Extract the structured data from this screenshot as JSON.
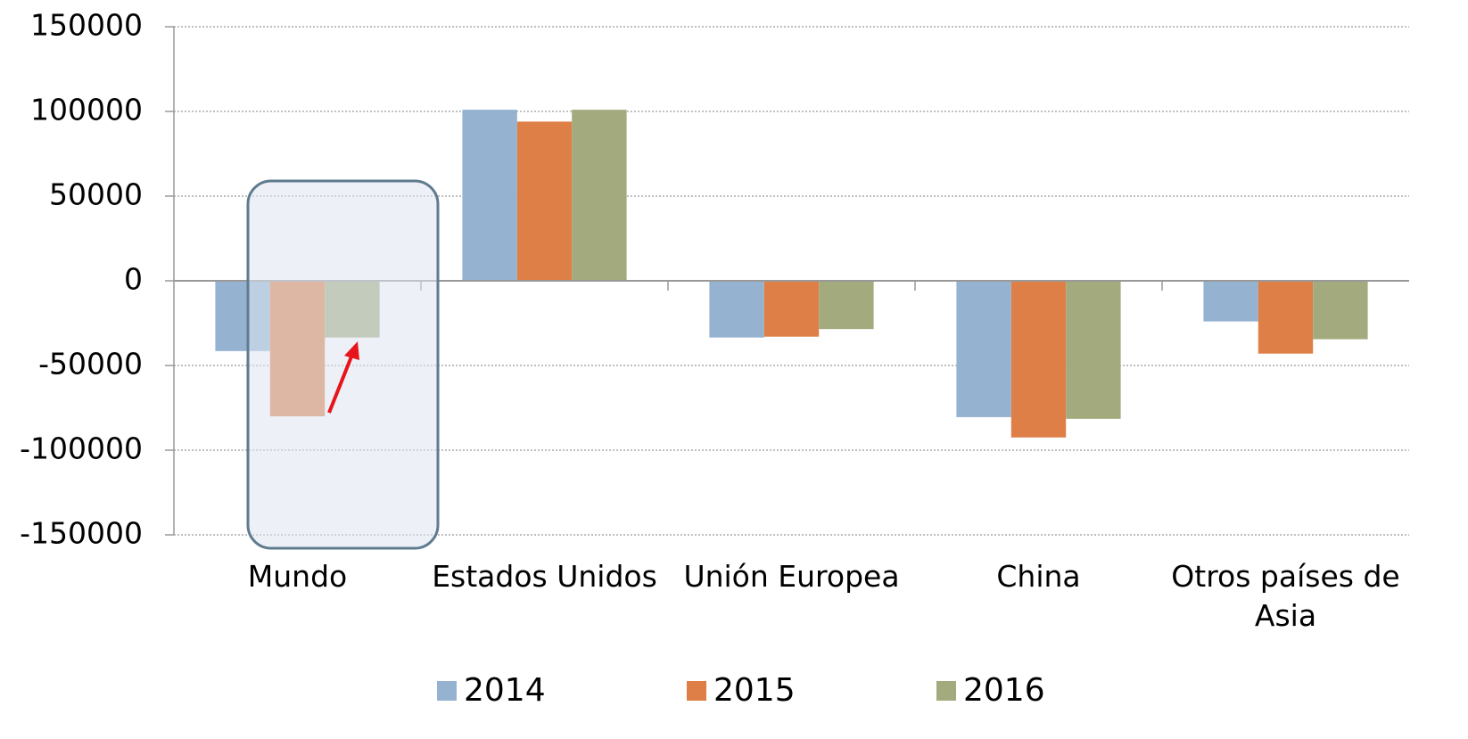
{
  "chart_data": {
    "type": "bar",
    "categories": [
      "Mundo",
      "Estados Unidos",
      "Unión Europea",
      "China",
      "Otros países de Asia"
    ],
    "series": [
      {
        "name": "2014",
        "color": "#95b3d0",
        "values": [
          -41500,
          101000,
          -33500,
          -80500,
          -24000
        ]
      },
      {
        "name": "2015",
        "color": "#de7f47",
        "values": [
          -80000,
          94000,
          -33000,
          -92500,
          -43000
        ]
      },
      {
        "name": "2016",
        "color": "#a3ab7e",
        "values": [
          -33500,
          101000,
          -28500,
          -81500,
          -34500
        ]
      }
    ],
    "ylim": [
      -150000,
      150000
    ],
    "yticks": [
      -150000,
      -100000,
      -50000,
      0,
      50000,
      100000,
      150000
    ],
    "grid": true,
    "legend": "bottom"
  }
}
